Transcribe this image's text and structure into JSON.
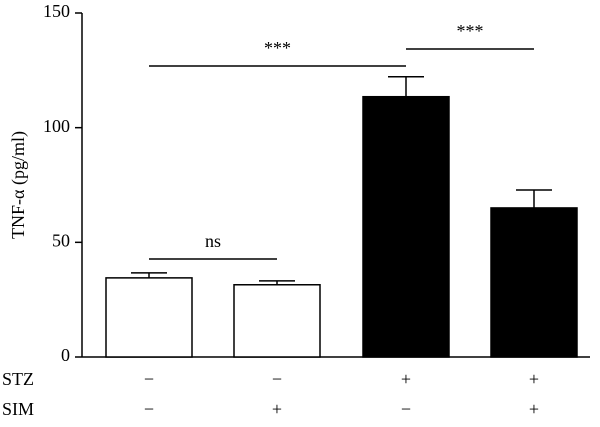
{
  "chart_data": {
    "type": "bar",
    "y_label": "TNF-α (pg/ml)",
    "values": [
      34.5,
      31.5,
      113.5,
      65
    ],
    "errors": [
      2.2,
      1.7,
      8.7,
      7.8
    ],
    "colors": [
      "#ffffff",
      "#ffffff",
      "#000000",
      "#000000"
    ],
    "treatments": [
      {
        "name": "STZ",
        "labels": [
          "−",
          "−",
          "+",
          "+"
        ]
      },
      {
        "name": "SIM",
        "labels": [
          "−",
          "+",
          "−",
          "+"
        ]
      }
    ],
    "brackets": [
      {
        "label": "ns",
        "bars": [
          0,
          1
        ]
      },
      {
        "label": "***",
        "bars": [
          0,
          2
        ]
      },
      {
        "label": "***",
        "bars": [
          2,
          3
        ]
      }
    ],
    "ylim": [
      0,
      150
    ],
    "yticks": [
      0,
      50,
      100,
      150
    ]
  }
}
